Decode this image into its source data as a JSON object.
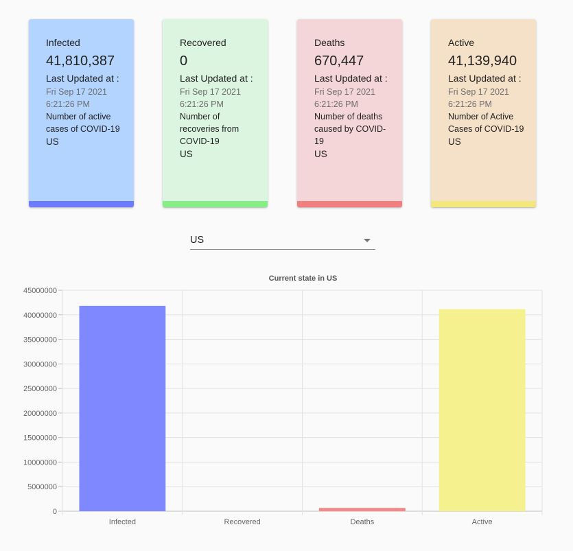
{
  "cards": [
    {
      "title": "Infected",
      "count": "41,810,387",
      "updated_label": "Last Updated at :",
      "date": "Fri Sep 17 2021 6:21:26 PM",
      "description": "Number of active cases of COVID-19",
      "country": "US",
      "bg_color": "#b3d4ff",
      "bar_color": "#6b7cff"
    },
    {
      "title": "Recovered",
      "count": "0",
      "updated_label": "Last Updated at :",
      "date": "Fri Sep 17 2021 6:21:26 PM",
      "description": "Number of recoveries from COVID-19",
      "country": "US",
      "bg_color": "#dcf5e0",
      "bar_color": "#85ee85"
    },
    {
      "title": "Deaths",
      "count": "670,447",
      "updated_label": "Last Updated at :",
      "date": "Fri Sep 17 2021 6:21:26 PM",
      "description": "Number of deaths caused by COVID-19",
      "country": "US",
      "bg_color": "#f5d6d8",
      "bar_color": "#f27f7f"
    },
    {
      "title": "Active",
      "count": "41,139,940",
      "updated_label": "Last Updated at :",
      "date": "Fri Sep 17 2021 6:21:26 PM",
      "description": "Number of Active Cases of COVID-19",
      "country": "US",
      "bg_color": "#f5e0c8",
      "bar_color": "#f2e77a"
    }
  ],
  "country_select": {
    "value": "US",
    "icon": "arrow-drop-down-icon"
  },
  "chart_data": {
    "type": "bar",
    "title": "Current state in US",
    "categories": [
      "Infected",
      "Recovered",
      "Deaths",
      "Active"
    ],
    "values": [
      41810387,
      0,
      670447,
      41139940
    ],
    "colors": [
      "#8088ff",
      "#7fe07f",
      "#f28a8a",
      "#f4f18e"
    ],
    "ylim": [
      0,
      45000000
    ],
    "yticks": [
      0,
      5000000,
      10000000,
      15000000,
      20000000,
      25000000,
      30000000,
      35000000,
      40000000,
      45000000
    ],
    "xlabel": "",
    "ylabel": "",
    "grid": true,
    "legend": "none"
  }
}
